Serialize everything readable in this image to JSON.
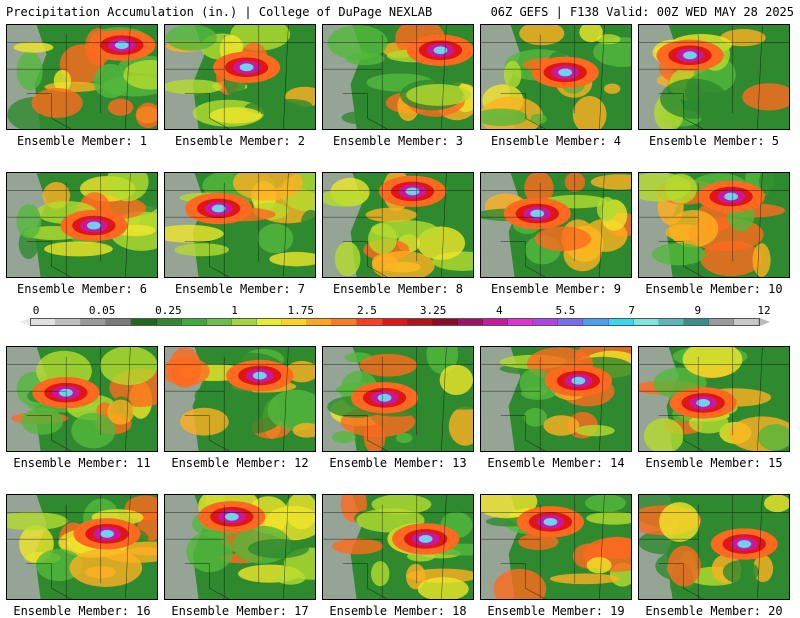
{
  "header": {
    "left": "Precipitation Accumulation (in.) | College of DuPage NEXLAB",
    "right": "06Z GEFS | F138 Valid: 00Z WED MAY 28 2025"
  },
  "colorbar": {
    "labels": [
      "0",
      "0.05",
      "0.25",
      "1",
      "1.75",
      "2.5",
      "3.25",
      "4",
      "5.5",
      "7",
      "9",
      "12"
    ],
    "colors": [
      "#e0e0e0",
      "#bdbdbd",
      "#9a9a9a",
      "#7a7a7a",
      "#1e6b1e",
      "#2f8a2f",
      "#3fa83f",
      "#6cc04a",
      "#a3d63a",
      "#e6ef2a",
      "#ffd21e",
      "#ffa51e",
      "#ff7a1e",
      "#ff3a1e",
      "#e01616",
      "#b8101a",
      "#8e0a26",
      "#a0106a",
      "#c8189e",
      "#e032d2",
      "#b040e8",
      "#7a6cf0",
      "#4aa0f0",
      "#36d8ea",
      "#7ae6e0",
      "#5ab8b8",
      "#3c8c8c",
      "#9a9a9a",
      "#c8c8c8"
    ]
  },
  "members": [
    {
      "label": "Ensemble Member: 1"
    },
    {
      "label": "Ensemble Member: 2"
    },
    {
      "label": "Ensemble Member: 3"
    },
    {
      "label": "Ensemble Member: 4"
    },
    {
      "label": "Ensemble Member: 5"
    },
    {
      "label": "Ensemble Member: 6"
    },
    {
      "label": "Ensemble Member: 7"
    },
    {
      "label": "Ensemble Member: 8"
    },
    {
      "label": "Ensemble Member: 9"
    },
    {
      "label": "Ensemble Member: 10"
    },
    {
      "label": "Ensemble Member: 11"
    },
    {
      "label": "Ensemble Member: 12"
    },
    {
      "label": "Ensemble Member: 13"
    },
    {
      "label": "Ensemble Member: 14"
    },
    {
      "label": "Ensemble Member: 15"
    },
    {
      "label": "Ensemble Member: 16"
    },
    {
      "label": "Ensemble Member: 17"
    },
    {
      "label": "Ensemble Member: 18"
    },
    {
      "label": "Ensemble Member: 19"
    },
    {
      "label": "Ensemble Member: 20"
    }
  ]
}
